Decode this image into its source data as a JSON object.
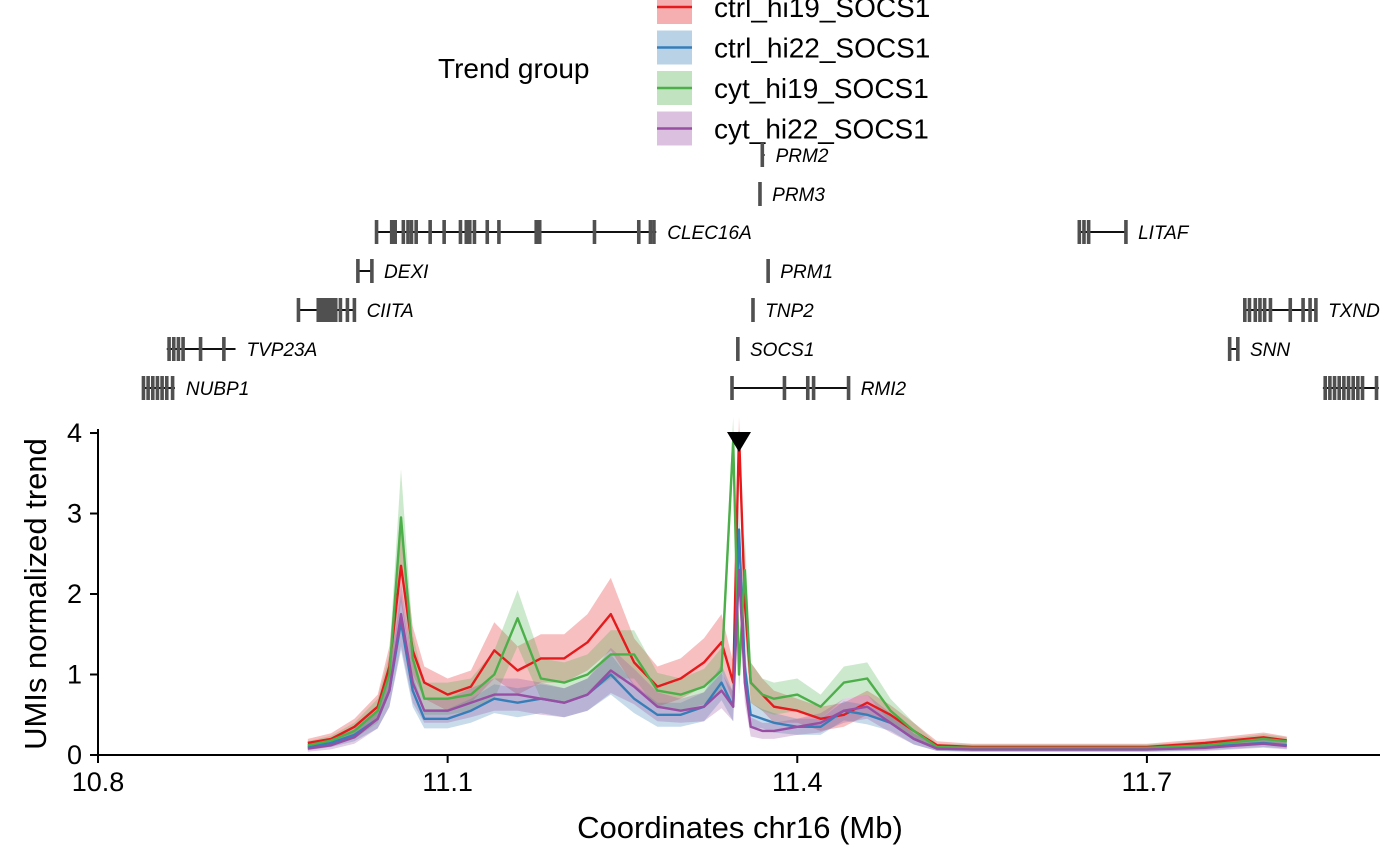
{
  "chart_data": {
    "type": "line",
    "xlabel": "Coordinates chr16 (Mb)",
    "ylabel": "UMIs normalized trend",
    "xlim": [
      10.8,
      11.9
    ],
    "ylim": [
      0,
      4.05
    ],
    "xticks": [
      10.8,
      11.1,
      11.4,
      11.7
    ],
    "xtick_labels": [
      "10.8",
      "11.1",
      "11.4",
      "11.7"
    ],
    "yticks": [
      0,
      1,
      2,
      3,
      4
    ],
    "ytick_labels": [
      "0",
      "1",
      "2",
      "3",
      "4"
    ],
    "grid": false,
    "legend_title": "Trend group",
    "legend_position": "top",
    "viewpoint_marker": {
      "x": 11.35,
      "label": ""
    },
    "series": [
      {
        "name": "ctrl_hi19_SOCS1",
        "color": "#E41A1C",
        "x": [
          10.98,
          11.0,
          11.02,
          11.04,
          11.05,
          11.06,
          11.07,
          11.08,
          11.1,
          11.12,
          11.14,
          11.16,
          11.18,
          11.2,
          11.22,
          11.24,
          11.26,
          11.28,
          11.3,
          11.32,
          11.335,
          11.345,
          11.35,
          11.355,
          11.36,
          11.37,
          11.38,
          11.4,
          11.42,
          11.44,
          11.46,
          11.48,
          11.5,
          11.52,
          11.55,
          11.6,
          11.65,
          11.7,
          11.75,
          11.8,
          11.82
        ],
        "y": [
          0.15,
          0.2,
          0.35,
          0.6,
          1.1,
          2.35,
          1.3,
          0.9,
          0.75,
          0.85,
          1.3,
          1.05,
          1.2,
          1.2,
          1.4,
          1.75,
          1.15,
          0.85,
          0.95,
          1.15,
          1.4,
          0.9,
          4.0,
          1.9,
          0.9,
          0.75,
          0.6,
          0.55,
          0.45,
          0.5,
          0.65,
          0.5,
          0.3,
          0.12,
          0.1,
          0.1,
          0.1,
          0.1,
          0.15,
          0.22,
          0.18
        ],
        "band": [
          0.05,
          0.07,
          0.1,
          0.15,
          0.25,
          0.45,
          0.3,
          0.2,
          0.2,
          0.2,
          0.35,
          0.3,
          0.3,
          0.3,
          0.35,
          0.45,
          0.3,
          0.25,
          0.25,
          0.3,
          0.35,
          0.25,
          0.2,
          0.4,
          0.25,
          0.2,
          0.2,
          0.15,
          0.15,
          0.15,
          0.15,
          0.12,
          0.1,
          0.05,
          0.04,
          0.04,
          0.04,
          0.04,
          0.05,
          0.06,
          0.05
        ]
      },
      {
        "name": "ctrl_hi22_SOCS1",
        "color": "#377EB8",
        "x": [
          10.98,
          11.0,
          11.02,
          11.04,
          11.05,
          11.06,
          11.07,
          11.08,
          11.1,
          11.12,
          11.14,
          11.16,
          11.18,
          11.2,
          11.22,
          11.24,
          11.26,
          11.28,
          11.3,
          11.32,
          11.335,
          11.345,
          11.35,
          11.355,
          11.36,
          11.37,
          11.38,
          11.4,
          11.42,
          11.44,
          11.46,
          11.48,
          11.5,
          11.52,
          11.55,
          11.6,
          11.65,
          11.7,
          11.75,
          11.8,
          11.82
        ],
        "y": [
          0.1,
          0.15,
          0.25,
          0.45,
          0.8,
          1.65,
          0.8,
          0.45,
          0.45,
          0.55,
          0.7,
          0.65,
          0.7,
          0.65,
          0.75,
          1.0,
          0.7,
          0.5,
          0.5,
          0.6,
          0.9,
          0.6,
          2.8,
          1.1,
          0.5,
          0.45,
          0.4,
          0.35,
          0.35,
          0.55,
          0.5,
          0.4,
          0.2,
          0.08,
          0.07,
          0.07,
          0.07,
          0.07,
          0.1,
          0.15,
          0.12
        ],
        "band": [
          0.04,
          0.05,
          0.08,
          0.12,
          0.2,
          0.35,
          0.2,
          0.12,
          0.12,
          0.15,
          0.18,
          0.18,
          0.18,
          0.18,
          0.2,
          0.25,
          0.18,
          0.15,
          0.15,
          0.18,
          0.22,
          0.18,
          0.3,
          0.25,
          0.15,
          0.12,
          0.12,
          0.1,
          0.1,
          0.12,
          0.12,
          0.1,
          0.07,
          0.03,
          0.03,
          0.03,
          0.03,
          0.03,
          0.04,
          0.05,
          0.04
        ]
      },
      {
        "name": "cyt_hi19_SOCS1",
        "color": "#4DAF4A",
        "x": [
          10.98,
          11.0,
          11.02,
          11.04,
          11.05,
          11.06,
          11.07,
          11.08,
          11.1,
          11.12,
          11.14,
          11.16,
          11.18,
          11.2,
          11.22,
          11.24,
          11.26,
          11.28,
          11.3,
          11.32,
          11.335,
          11.345,
          11.35,
          11.355,
          11.36,
          11.37,
          11.38,
          11.4,
          11.42,
          11.44,
          11.46,
          11.48,
          11.5,
          11.52,
          11.55,
          11.6,
          11.65,
          11.7,
          11.75,
          11.8,
          11.82
        ],
        "y": [
          0.12,
          0.18,
          0.3,
          0.55,
          1.0,
          2.95,
          1.2,
          0.7,
          0.7,
          0.75,
          1.0,
          1.7,
          0.95,
          0.9,
          1.0,
          1.25,
          1.25,
          0.8,
          0.75,
          0.85,
          1.05,
          3.9,
          1.0,
          2.3,
          0.9,
          0.75,
          0.7,
          0.75,
          0.6,
          0.9,
          0.95,
          0.55,
          0.3,
          0.1,
          0.09,
          0.09,
          0.09,
          0.09,
          0.12,
          0.2,
          0.17
        ],
        "band": [
          0.05,
          0.06,
          0.1,
          0.15,
          0.25,
          0.6,
          0.3,
          0.2,
          0.2,
          0.2,
          0.3,
          0.35,
          0.25,
          0.25,
          0.25,
          0.3,
          0.3,
          0.22,
          0.2,
          0.22,
          0.28,
          0.3,
          0.25,
          0.45,
          0.25,
          0.2,
          0.2,
          0.2,
          0.15,
          0.2,
          0.2,
          0.15,
          0.1,
          0.04,
          0.04,
          0.04,
          0.04,
          0.04,
          0.05,
          0.06,
          0.05
        ]
      },
      {
        "name": "cyt_hi22_SOCS1",
        "color": "#984EA3",
        "x": [
          10.98,
          11.0,
          11.02,
          11.04,
          11.05,
          11.06,
          11.07,
          11.08,
          11.1,
          11.12,
          11.14,
          11.16,
          11.18,
          11.2,
          11.22,
          11.24,
          11.26,
          11.28,
          11.3,
          11.32,
          11.335,
          11.345,
          11.35,
          11.355,
          11.36,
          11.37,
          11.38,
          11.4,
          11.42,
          11.44,
          11.46,
          11.48,
          11.5,
          11.52,
          11.55,
          11.6,
          11.65,
          11.7,
          11.75,
          11.8,
          11.82
        ],
        "y": [
          0.08,
          0.12,
          0.22,
          0.45,
          0.8,
          1.75,
          0.9,
          0.55,
          0.55,
          0.65,
          0.75,
          0.75,
          0.7,
          0.65,
          0.75,
          1.05,
          0.85,
          0.6,
          0.55,
          0.6,
          0.8,
          0.6,
          2.3,
          0.9,
          0.35,
          0.3,
          0.3,
          0.35,
          0.4,
          0.55,
          0.6,
          0.4,
          0.2,
          0.08,
          0.07,
          0.07,
          0.07,
          0.07,
          0.09,
          0.14,
          0.11
        ],
        "band": [
          0.04,
          0.05,
          0.08,
          0.12,
          0.2,
          0.4,
          0.25,
          0.15,
          0.15,
          0.18,
          0.2,
          0.2,
          0.2,
          0.18,
          0.2,
          0.28,
          0.22,
          0.18,
          0.15,
          0.18,
          0.22,
          0.18,
          0.3,
          0.25,
          0.12,
          0.1,
          0.1,
          0.1,
          0.12,
          0.15,
          0.15,
          0.12,
          0.07,
          0.03,
          0.03,
          0.03,
          0.03,
          0.03,
          0.04,
          0.05,
          0.04
        ]
      }
    ],
    "genes": [
      {
        "name": "NUBP1",
        "start": 10.838,
        "end": 10.866,
        "exons": [
          10.839,
          10.843,
          10.847,
          10.851,
          10.855,
          10.859,
          10.864
        ]
      },
      {
        "name": "TVP23A",
        "start": 10.859,
        "end": 10.918,
        "exons": [
          10.861,
          10.865,
          10.869,
          10.873,
          10.888,
          10.908
        ]
      },
      {
        "name": "CIITA",
        "start": 10.971,
        "end": 11.021,
        "exons": [
          10.972,
          10.989,
          10.992,
          10.995,
          10.998,
          11.001,
          11.004,
          11.008,
          11.014,
          11.02
        ]
      },
      {
        "name": "DEXI",
        "start": 11.022,
        "end": 11.036,
        "exons": [
          11.023,
          11.035
        ]
      },
      {
        "name": "CLEC16A",
        "start": 11.038,
        "end": 11.279,
        "exons": [
          11.039,
          11.052,
          11.055,
          11.062,
          11.066,
          11.069,
          11.073,
          11.085,
          11.097,
          11.111,
          11.116,
          11.119,
          11.123,
          11.134,
          11.144,
          11.176,
          11.179,
          11.226,
          11.264,
          11.274,
          11.277
        ]
      },
      {
        "name": "SOCS1",
        "start": 11.348,
        "end": 11.35,
        "exons": [
          11.349
        ]
      },
      {
        "name": "TNP2",
        "start": 11.361,
        "end": 11.363,
        "exons": [
          11.362
        ]
      },
      {
        "name": "PRM1",
        "start": 11.374,
        "end": 11.376,
        "exons": [
          11.375
        ]
      },
      {
        "name": "PRM3",
        "start": 11.367,
        "end": 11.369,
        "exons": [
          11.368
        ]
      },
      {
        "name": "PRM2",
        "start": 11.369,
        "end": 11.372,
        "exons": [
          11.37
        ]
      },
      {
        "name": "RMI2",
        "start": 11.343,
        "end": 11.445,
        "exons": [
          11.344,
          11.389,
          11.409,
          11.414,
          11.444
        ]
      },
      {
        "name": "LITAF",
        "start": 11.641,
        "end": 11.683,
        "exons": [
          11.642,
          11.646,
          11.65,
          11.682
        ]
      },
      {
        "name": "SNN",
        "start": 11.77,
        "end": 11.779,
        "exons": [
          11.771,
          11.778
        ]
      },
      {
        "name": "TXND",
        "start": 11.783,
        "end": 11.846,
        "exons": [
          11.784,
          11.788,
          11.793,
          11.797,
          11.801,
          11.806,
          11.823,
          11.834,
          11.84,
          11.845
        ]
      },
      {
        "name": "",
        "start": 11.851,
        "end": 11.899,
        "exons": [
          11.853,
          11.857,
          11.861,
          11.865,
          11.869,
          11.873,
          11.877,
          11.881,
          11.885,
          11.897
        ]
      }
    ]
  }
}
